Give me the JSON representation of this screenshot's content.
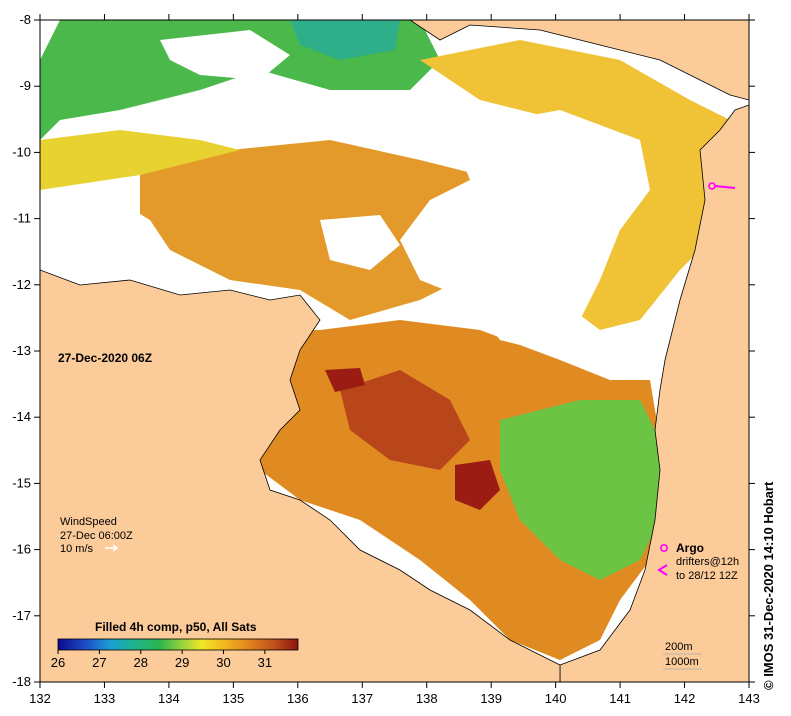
{
  "map": {
    "date_label": "27-Dec-2020 06Z",
    "lon_ticks": [
      "132",
      "133",
      "134",
      "135",
      "136",
      "137",
      "138",
      "139",
      "140",
      "141",
      "142",
      "143"
    ],
    "lat_ticks": [
      "-8",
      "-9",
      "-10",
      "-11",
      "-12",
      "-13",
      "-14",
      "-15",
      "-16",
      "-17",
      "-18"
    ],
    "colors": {
      "land": "#fbcb9a",
      "no_data": "#ffffff",
      "argo": "#ff00ff"
    }
  },
  "wind": {
    "title": "WindSpeed",
    "time": "27-Dec 06:00Z",
    "scale": "10 m/s"
  },
  "colorbar": {
    "title": "Filled 4h comp, p50, All Sats",
    "ticks": [
      "26",
      "27",
      "28",
      "29",
      "30",
      "31"
    ]
  },
  "legend": {
    "argo": "Argo",
    "drifters_1": "drifters@12h",
    "drifters_2": "to 28/12 12Z"
  },
  "depth": {
    "d1": "200m",
    "d2": "1000m"
  },
  "credit": "© IMOS 31-Dec-2020 14:10 Hobart"
}
